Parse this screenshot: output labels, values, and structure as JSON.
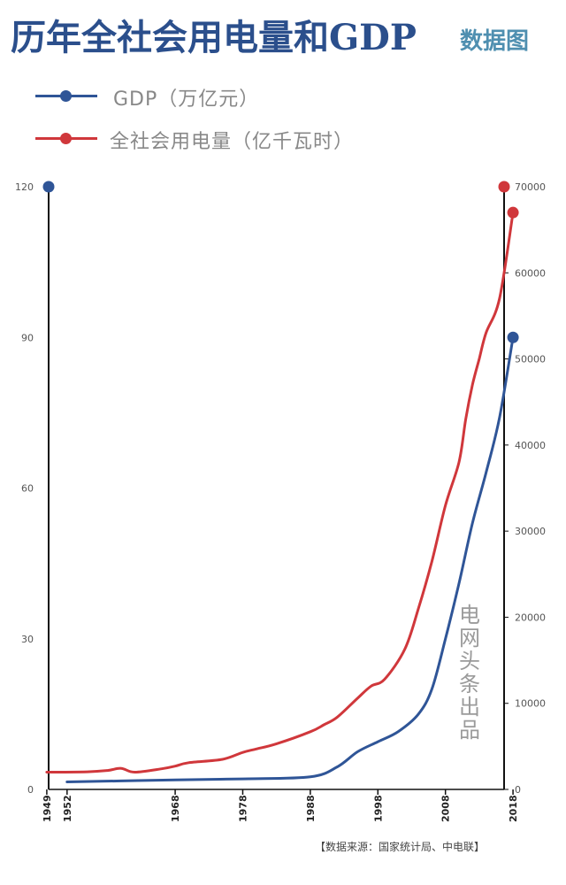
{
  "title": "历年全社会用电量和GDP",
  "subtitle": "数据图",
  "legend": {
    "gdp": "GDP（万亿元）",
    "power": "全社会用电量（亿千瓦时）"
  },
  "colors": {
    "gdp": "#2f5597",
    "power": "#d0373b",
    "axis": "#111111"
  },
  "watermark": "电网头条出品",
  "source": "【数据来源：国家统计局、中电联】",
  "chart_data": {
    "type": "line",
    "title": "历年全社会用电量和GDP",
    "x_ticks": [
      "1949",
      "1952",
      "1968",
      "1978",
      "1988",
      "1998",
      "2008",
      "2018"
    ],
    "x_range": [
      1946,
      2021
    ],
    "left_axis": {
      "label": "GDP（万亿元）",
      "range": [
        0,
        120
      ],
      "ticks": [
        "0",
        "30",
        "60",
        "90",
        "120"
      ]
    },
    "right_axis": {
      "label": "全社会用电量（亿千瓦时）",
      "range": [
        0,
        70000
      ],
      "ticks": [
        "0",
        "10000",
        "20000",
        "30000",
        "40000",
        "50000",
        "60000",
        "70000"
      ]
    },
    "series": [
      {
        "name": "GDP（万亿元）",
        "axis": "left",
        "points": [
          [
            1952,
            1.5
          ],
          [
            1960,
            1.7
          ],
          [
            1968,
            1.9
          ],
          [
            1978,
            2.1
          ],
          [
            1988,
            2.5
          ],
          [
            1992,
            4.5
          ],
          [
            1995,
            7.5
          ],
          [
            1998,
            9.5
          ],
          [
            2001,
            11.5
          ],
          [
            2004,
            15
          ],
          [
            2006,
            20
          ],
          [
            2008,
            30
          ],
          [
            2010,
            41
          ],
          [
            2012,
            53
          ],
          [
            2014,
            63
          ],
          [
            2016,
            74
          ],
          [
            2018,
            90
          ]
        ],
        "end_marker": [
          2018,
          90
        ],
        "axis_marker": 120
      },
      {
        "name": "全社会用电量（亿千瓦时）",
        "axis": "right",
        "points": [
          [
            1949,
            2000
          ],
          [
            1955,
            2050
          ],
          [
            1958,
            2200
          ],
          [
            1960,
            2450
          ],
          [
            1962,
            2000
          ],
          [
            1966,
            2400
          ],
          [
            1968,
            2700
          ],
          [
            1970,
            3100
          ],
          [
            1975,
            3500
          ],
          [
            1978,
            4300
          ],
          [
            1980,
            4700
          ],
          [
            1983,
            5300
          ],
          [
            1988,
            6700
          ],
          [
            1990,
            7500
          ],
          [
            1992,
            8400
          ],
          [
            1995,
            10600
          ],
          [
            1997,
            12000
          ],
          [
            1999,
            12800
          ],
          [
            2002,
            16300
          ],
          [
            2004,
            21000
          ],
          [
            2006,
            26500
          ],
          [
            2008,
            33000
          ],
          [
            2010,
            38000
          ],
          [
            2011,
            43000
          ],
          [
            2012,
            47000
          ],
          [
            2013,
            50000
          ],
          [
            2014,
            53000
          ],
          [
            2016,
            57000
          ],
          [
            2018,
            67000
          ]
        ],
        "end_marker": [
          2018,
          67000
        ],
        "axis_marker": 70000
      }
    ]
  }
}
